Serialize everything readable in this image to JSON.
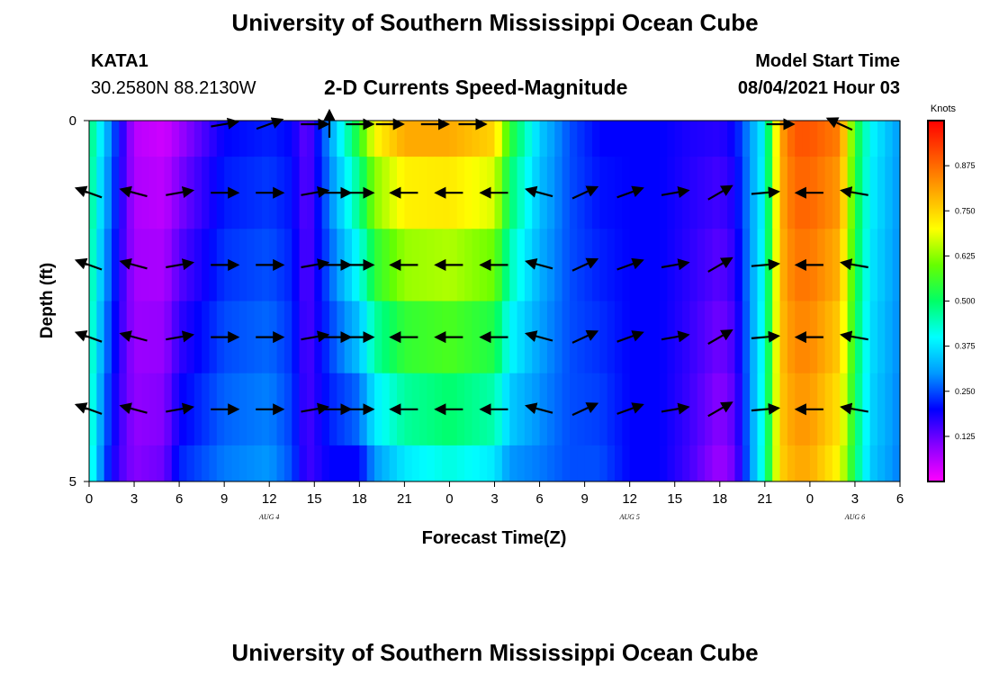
{
  "header": {
    "title": "University of Southern Mississippi Ocean Cube",
    "station": "KATA1",
    "coords": "30.2580N  88.2130W",
    "subtitle": "2-D Currents Speed-Magnitude",
    "start_label": "Model Start Time",
    "start_value": "08/04/2021 Hour 03"
  },
  "footer": {
    "title": "University of Southern Mississippi Ocean Cube"
  },
  "chart_data": {
    "type": "heatmap",
    "xlabel": "Forecast Time(Z)",
    "ylabel": "Depth (ft)",
    "x_tick_labels": [
      "0",
      "3",
      "6",
      "9",
      "12",
      "15",
      "18",
      "21",
      "0",
      "3",
      "6",
      "9",
      "12",
      "15",
      "18",
      "21",
      "0",
      "3",
      "6"
    ],
    "date_labels": [
      {
        "text": "AUG 4",
        "hour": 12
      },
      {
        "text": "AUG 5",
        "hour": 36
      },
      {
        "text": "AUG 6",
        "hour": 51
      }
    ],
    "x_range_hours": [
      0,
      54
    ],
    "y_range_ft": [
      0,
      5
    ],
    "y_tick_labels": [
      "0",
      "5"
    ],
    "y_minor_ticks_ft": [
      1,
      2,
      3,
      4
    ],
    "depth_rows_ft": [
      0.25,
      1,
      2,
      3,
      4,
      4.75
    ],
    "colorbar": {
      "title": "Knots",
      "range": [
        0,
        1.0
      ],
      "tick_labels": [
        "0.875",
        "0.750",
        "0.625",
        "0.500",
        "0.375",
        "0.250",
        "0.125"
      ],
      "tick_values": [
        0.875,
        0.75,
        0.625,
        0.5,
        0.375,
        0.25,
        0.125
      ],
      "colors": [
        "#ff00ff",
        "#8800ff",
        "#0000ff",
        "#0099ff",
        "#00ffff",
        "#00ff66",
        "#66ff00",
        "#ffff00",
        "#ffaa00",
        "#ff5500",
        "#ff0000"
      ]
    },
    "speed_profile_hours": [
      0,
      1,
      2,
      3,
      5,
      6,
      9,
      12,
      13.5,
      14.5,
      16,
      18,
      19,
      21,
      24,
      27,
      28,
      30,
      32,
      34,
      36,
      38,
      40,
      42,
      43,
      45,
      46,
      47,
      48,
      50,
      51,
      52,
      54
    ],
    "speed_surface": [
      0.5,
      0.35,
      0.2,
      0.06,
      0.04,
      0.08,
      0.2,
      0.22,
      0.2,
      0.12,
      0.3,
      0.55,
      0.7,
      0.8,
      0.8,
      0.75,
      0.55,
      0.35,
      0.25,
      0.2,
      0.2,
      0.2,
      0.18,
      0.17,
      0.2,
      0.4,
      0.8,
      0.9,
      0.9,
      0.85,
      0.55,
      0.4,
      0.3
    ],
    "speed_bottom": [
      0.45,
      0.25,
      0.15,
      0.1,
      0.12,
      0.22,
      0.28,
      0.3,
      0.25,
      0.15,
      0.2,
      0.2,
      0.3,
      0.38,
      0.42,
      0.38,
      0.3,
      0.28,
      0.25,
      0.25,
      0.2,
      0.2,
      0.15,
      0.08,
      0.12,
      0.45,
      0.75,
      0.8,
      0.8,
      0.7,
      0.5,
      0.35,
      0.28
    ],
    "arrow_hours": [
      0,
      3,
      6,
      9,
      12,
      15,
      16.5,
      18,
      21,
      24,
      27,
      30,
      33,
      36,
      39,
      42,
      45,
      48,
      51
    ],
    "arrow_depths_ft": [
      1,
      2,
      3,
      4
    ],
    "arrow_angles_deg": [
      160,
      165,
      10,
      0,
      0,
      10,
      0,
      0,
      180,
      180,
      180,
      165,
      25,
      20,
      10,
      30,
      5,
      180,
      170
    ],
    "top_row_arrow_hours": [
      9,
      12,
      15,
      16,
      18,
      20,
      23,
      25.5,
      46,
      50
    ],
    "top_row_arrow_angles_deg": [
      10,
      20,
      0,
      90,
      0,
      0,
      0,
      0,
      0,
      155
    ]
  }
}
